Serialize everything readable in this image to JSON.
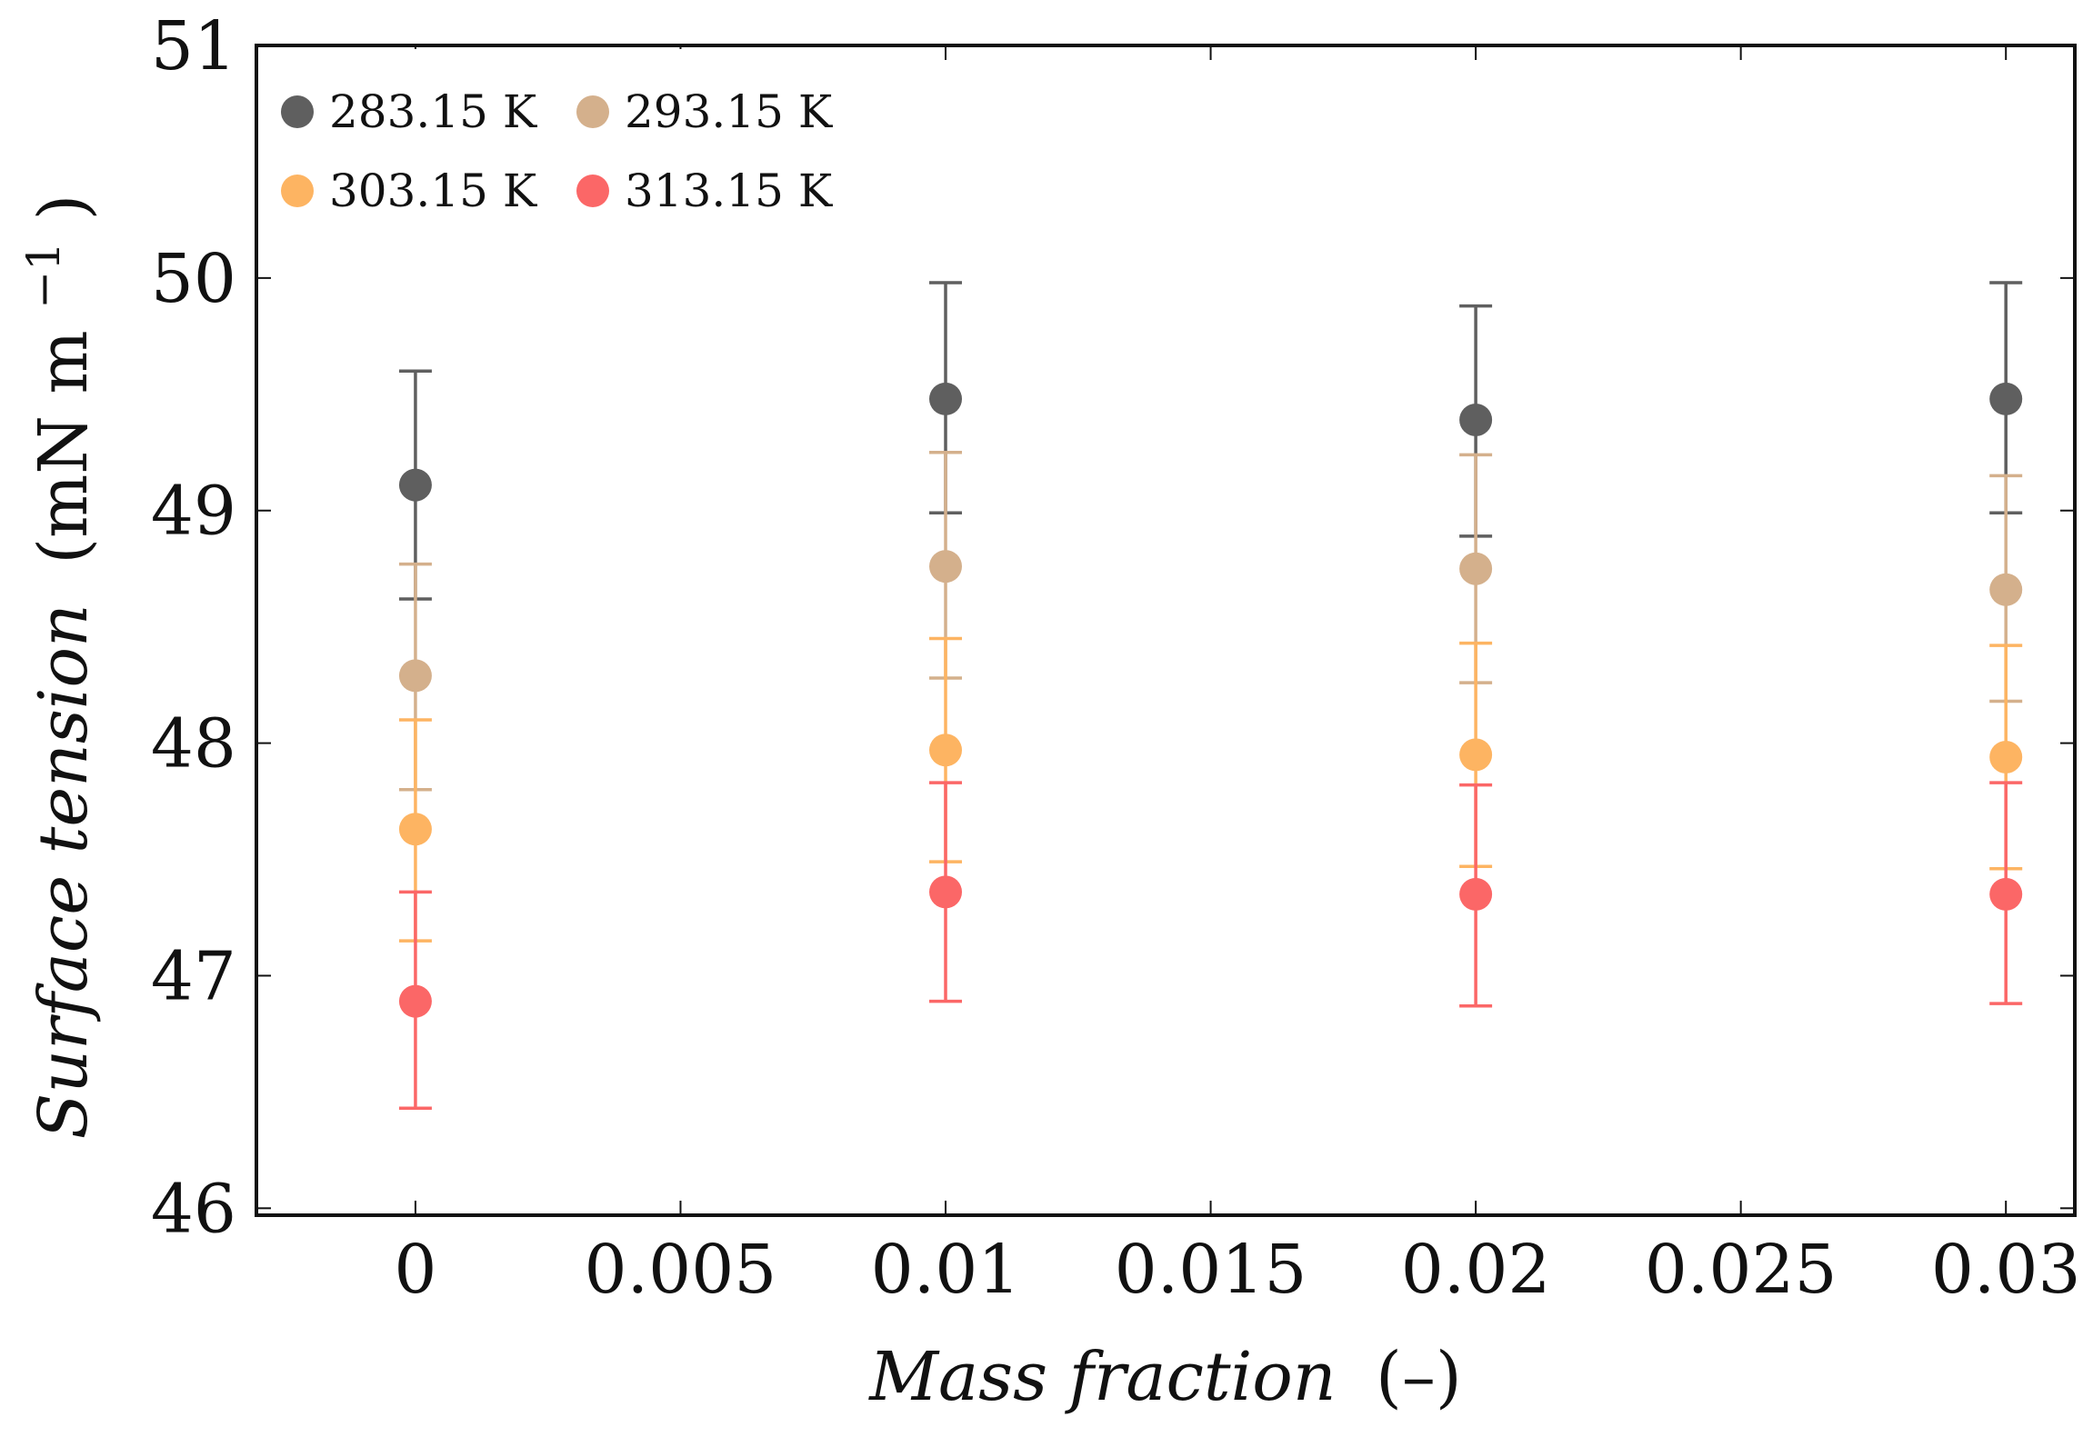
{
  "chart_data": {
    "type": "scatter",
    "title": "",
    "xlabel_main": "Mass fraction",
    "xlabel_unit": "(–)",
    "ylabel_main": "Surface tension",
    "ylabel_unit": "(mN m",
    "ylabel_sup": "−1",
    "ylabel_close": ")",
    "xlim": [
      -0.003,
      0.0313
    ],
    "ylim": [
      45.97,
      51
    ],
    "x": [
      0,
      0.01,
      0.02,
      0.03
    ],
    "xticks": [
      0,
      0.005,
      0.01,
      0.015,
      0.02,
      0.025,
      0.03
    ],
    "xtick_labels": [
      "0",
      "0.005",
      "0.01",
      "0.015",
      "0.02",
      "0.025",
      "0.03"
    ],
    "yticks": [
      46,
      47,
      48,
      49,
      50,
      51
    ],
    "ytick_labels": [
      "46",
      "47",
      "48",
      "49",
      "50",
      "51"
    ],
    "legend_position": "top-left",
    "series": [
      {
        "name": "283.15 K",
        "color": "#5f5f5f",
        "values": [
          49.11,
          49.48,
          49.39,
          49.48
        ],
        "err_low": [
          48.62,
          48.99,
          48.89,
          48.99
        ],
        "err_high": [
          49.6,
          49.98,
          49.88,
          49.98
        ]
      },
      {
        "name": "293.15 K",
        "color": "#d4b08c",
        "values": [
          48.29,
          48.76,
          48.75,
          48.66
        ],
        "err_low": [
          47.8,
          48.28,
          48.26,
          48.18
        ],
        "err_high": [
          48.77,
          49.25,
          49.24,
          49.15
        ]
      },
      {
        "name": "303.15 K",
        "color": "#fdb462",
        "values": [
          47.63,
          47.97,
          47.95,
          47.94
        ],
        "err_low": [
          47.15,
          47.49,
          47.47,
          47.46
        ],
        "err_high": [
          48.1,
          48.45,
          48.43,
          48.42
        ]
      },
      {
        "name": "313.15 K",
        "color": "#fb6767",
        "values": [
          46.89,
          47.36,
          47.35,
          47.35
        ],
        "err_low": [
          46.43,
          46.89,
          46.87,
          46.88
        ],
        "err_high": [
          47.36,
          47.83,
          47.82,
          47.83
        ]
      }
    ]
  }
}
